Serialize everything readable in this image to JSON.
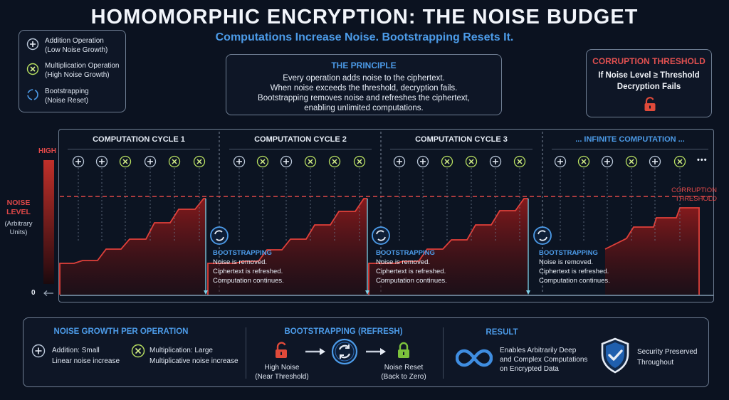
{
  "title": "HOMOMORPHIC ENCRYPTION: THE NOISE BUDGET",
  "subtitle": "Computations Increase Noise. Bootstrapping Resets It.",
  "legend": [
    {
      "icon": "plus-icon",
      "line1": "Addition Operation",
      "line2": "(Low Noise Growth)"
    },
    {
      "icon": "cross-icon",
      "line1": "Multiplication Operation",
      "line2": "(High Noise Growth)"
    },
    {
      "icon": "refresh-icon",
      "line1": "Bootstrapping",
      "line2": "(Noise Reset)"
    }
  ],
  "principle": {
    "heading": "THE PRINCIPLE",
    "lines": [
      "Every operation adds noise to the ciphertext.",
      "When noise exceeds the threshold, decryption fails.",
      "Bootstrapping removes noise and refreshes the ciphertext,",
      "enabling unlimited computations."
    ]
  },
  "corruption": {
    "heading": "CORRUPTION THRESHOLD",
    "line1": "If Noise Level ≥ Threshold",
    "line2": "Decryption Fails"
  },
  "axis": {
    "high": "HIGH",
    "zero": "0",
    "noise_label_1": "NOISE",
    "noise_label_2": "LEVEL",
    "units_1": "(Arbitrary",
    "units_2": "Units)",
    "threshold_1": "CORRUPTION",
    "threshold_2": "THRESHOLD"
  },
  "cycles": [
    {
      "label": "COMPUTATION CYCLE 1",
      "ops": [
        "plus",
        "plus",
        "cross",
        "plus",
        "cross",
        "cross"
      ]
    },
    {
      "label": "COMPUTATION CYCLE 2",
      "ops": [
        "plus",
        "cross",
        "plus",
        "cross",
        "cross",
        "cross"
      ]
    },
    {
      "label": "COMPUTATION CYCLE 3",
      "ops": [
        "plus",
        "plus",
        "cross",
        "cross",
        "plus",
        "cross"
      ]
    },
    {
      "label": "... INFINITE COMPUTATION ...",
      "ops": [
        "plus",
        "cross",
        "plus",
        "cross",
        "plus",
        "cross"
      ],
      "more": "•••"
    }
  ],
  "bootstrapping_note": {
    "heading": "BOOTSTRAPPING",
    "line1": "Noise is removed.",
    "line2": "Ciphertext is refreshed.",
    "line3": "Computation continues."
  },
  "bottom": {
    "growth": {
      "heading": "NOISE GROWTH PER OPERATION",
      "add_title": "Addition: Small",
      "add_desc": "Linear noise increase",
      "mul_title": "Multiplication: Large",
      "mul_desc": "Multiplicative noise increase"
    },
    "refresh": {
      "heading": "BOOTSTRAPPING (REFRESH)",
      "high_1": "High Noise",
      "high_2": "(Near Threshold)",
      "reset_1": "Noise Reset",
      "reset_2": "(Back to Zero)"
    },
    "result": {
      "heading": "RESULT",
      "r1": "Enables Arbitrarily Deep",
      "r2": "and Complex Computations",
      "r3": "on Encrypted Data",
      "s1": "Security Preserved",
      "s2": "Throughout"
    }
  },
  "colors": {
    "accent_blue": "#4c9be8",
    "noise_red": "#e0403a",
    "threshold_red": "#e04848",
    "mult_green": "#b8e060",
    "lock_red": "#e04a3a",
    "lock_green": "#7cc23c"
  }
}
